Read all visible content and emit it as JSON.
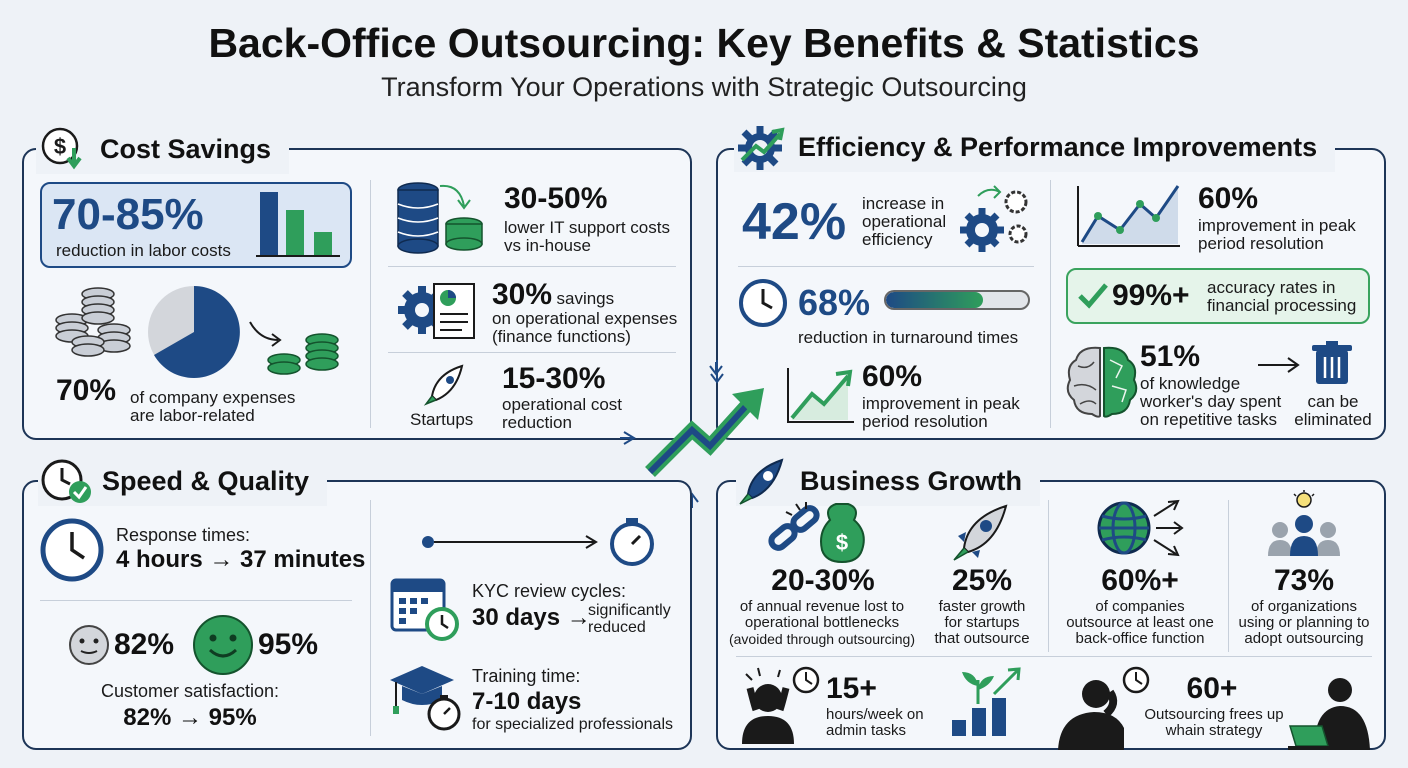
{
  "header": {
    "title": "Back-Office Outsourcing: Key Benefits & Statistics",
    "subtitle": "Transform Your Operations with Strategic Outsourcing"
  },
  "cost": {
    "title": "Cost Savings",
    "labor_value": "70-85%",
    "labor_text": "reduction in labor costs",
    "expenses_value": "70%",
    "expenses_text1": "of company expenses",
    "expenses_text2": "are labor-related",
    "it_value": "30-50%",
    "it_text1": "lower IT support costs",
    "it_text2": "vs in-house",
    "ops_value": "30%",
    "ops_word": "savings",
    "ops_text1": "on operational expenses",
    "ops_text2": "(finance functions)",
    "startups_label": "Startups",
    "startups_value": "15-30%",
    "startups_text1": "operational cost",
    "startups_text2": "reduction"
  },
  "efficiency": {
    "title": "Efficiency & Performance Improvements",
    "eff_value": "42%",
    "eff_text1": "increase in",
    "eff_text2": "operational",
    "eff_text3": "efficiency",
    "peak1_value": "60%",
    "peak1_text1": "improvement in peak",
    "peak1_text2": "period resolution",
    "turn_value": "68%",
    "turn_text": "reduction in turnaround times",
    "turn_fill": 0.68,
    "acc_value": "99%+",
    "acc_text1": "accuracy rates in",
    "acc_text2": "financial processing",
    "peak2_value": "60%",
    "peak2_text1": "improvement in peak",
    "peak2_text2": "period resolution",
    "know_value": "51%",
    "know_text1": "of knowledge",
    "know_text2": "worker's day spent",
    "know_text3": "on repetitive tasks",
    "elim_text1": "can be",
    "elim_text2": "eliminated"
  },
  "speed": {
    "title": "Speed & Quality",
    "resp_label": "Response times:",
    "resp_value": "4 hours → 37 minutes",
    "sat_before": "82%",
    "sat_after": "95%",
    "sat_label": "Customer satisfaction:",
    "sat_value": "82% → 95%",
    "kyc_label": "KYC review cycles:",
    "kyc_value": "30 days →",
    "kyc_note1": "significantly",
    "kyc_note2": "reduced",
    "train_label": "Training time:",
    "train_value": "7-10 days",
    "train_note": "for specialized professionals"
  },
  "growth": {
    "title": "Business Growth",
    "rev_value": "20-30%",
    "rev_text1": "of annual revenue lost to",
    "rev_text2": "operational bottlenecks",
    "rev_text3": "(avoided through outsourcing)",
    "fast_value": "25%",
    "fast_text1": "faster growth",
    "fast_text2": "for startups",
    "fast_text3": "that outsource",
    "comp_value": "60%+",
    "comp_text1": "of companies",
    "comp_text2": "outsource at least one",
    "comp_text3": "back-office function",
    "org_value": "73%",
    "org_text1": "of organizations",
    "org_text2": "using or planning to",
    "org_text3": "adopt outsourcing",
    "admin_value": "15+",
    "admin_text1": "hours/week on",
    "admin_text2": "admin tasks",
    "frees_value": "60+",
    "frees_text1": "Outsourcing frees up",
    "frees_text2": "whain strategy"
  },
  "colors": {
    "navy": "#1e4a85",
    "green": "#2f9e5b",
    "border": "#1d3557"
  }
}
